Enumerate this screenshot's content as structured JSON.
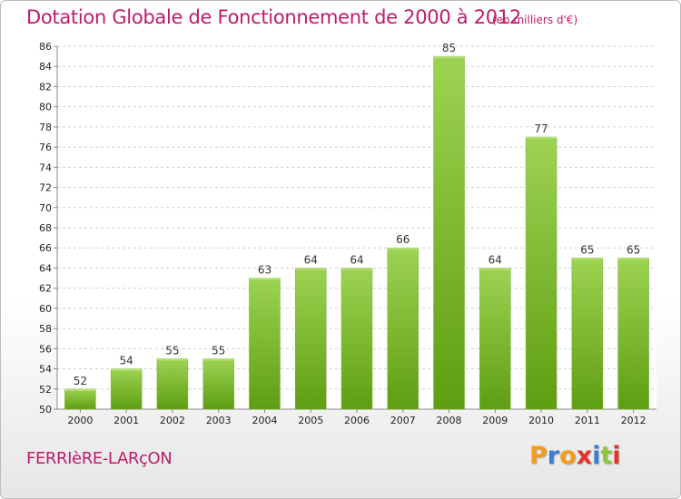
{
  "chart_data": {
    "type": "bar",
    "title": "Dotation Globale de Fonctionnement de 2000 à 2012",
    "subtitle": "(en milliers d'€)",
    "categories": [
      "2000",
      "2001",
      "2002",
      "2003",
      "2004",
      "2005",
      "2006",
      "2007",
      "2008",
      "2009",
      "2010",
      "2011",
      "2012"
    ],
    "values": [
      52,
      54,
      55,
      55,
      63,
      64,
      64,
      66,
      85,
      64,
      77,
      65,
      65
    ],
    "ylim": [
      50,
      86
    ],
    "yticks": [
      50,
      52,
      54,
      56,
      58,
      60,
      62,
      64,
      66,
      68,
      70,
      72,
      74,
      76,
      78,
      80,
      82,
      84,
      86
    ],
    "grid": true,
    "bar_color_top": "#9dd352",
    "bar_color_bottom": "#5e9e12",
    "xlabel": "",
    "ylabel": ""
  },
  "commune": "FERRIèRE-LARçON",
  "logo": {
    "letters": [
      "P",
      "r",
      "o",
      "x",
      "i",
      "t",
      "i"
    ],
    "colors": [
      "#f39c1c",
      "#3a7fd0",
      "#f39c1c",
      "#e5332a",
      "#3a7fd0",
      "#8cc63f",
      "#e5332a"
    ]
  },
  "colors": {
    "title": "#c01b6a",
    "grid": "#d0d0d0",
    "axis": "#888888"
  }
}
